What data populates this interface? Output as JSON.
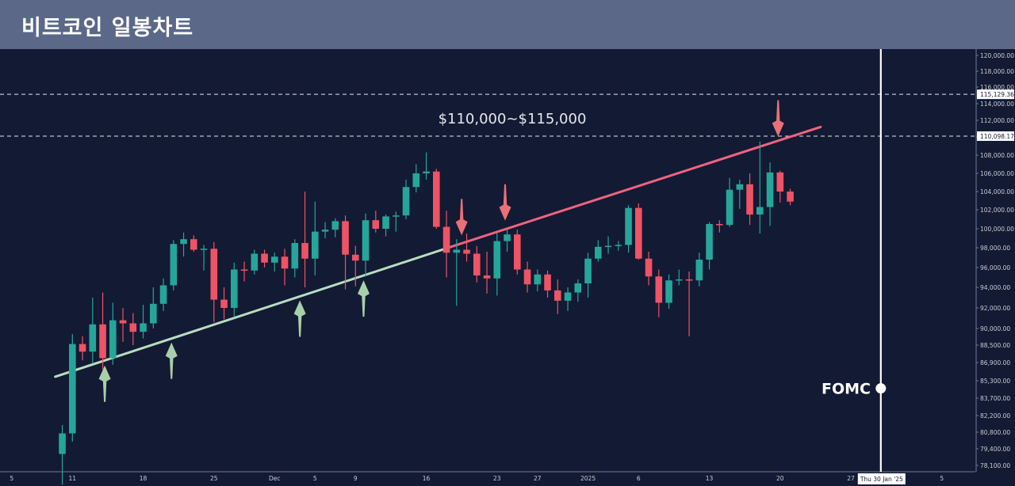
{
  "header": {
    "title": "비트코인 일봉차트"
  },
  "colors": {
    "background": "#131a33",
    "header_bg": "#5b6888",
    "up": "#26a69a",
    "down": "#ef5366",
    "support": "#b9dcbf",
    "resistance": "#f0637f",
    "up_arrow": "#a9cfa9",
    "down_arrow": "#ea7078",
    "guide": "#ffffff"
  },
  "chart_data": {
    "type": "candlestick",
    "title": "비트코인 일봉차트",
    "ylim": [
      77000,
      121000
    ],
    "y_ticks": [
      "120,000.00",
      "118,000.00",
      "116,000.00",
      "114,000.00",
      "112,000.00",
      "110,000.00",
      "108,000.00",
      "106,000.00",
      "104,000.00",
      "102,000.00",
      "100,000.00",
      "98,000.00",
      "96,000.00",
      "94,000.00",
      "92,000.00",
      "90,000.00",
      "88,500.00",
      "86,900.00",
      "85,300.00",
      "83,700.00",
      "82,200.00",
      "80,800.00",
      "79,400.00",
      "78,100.00"
    ],
    "y_tick_values": [
      120000,
      118000,
      116000,
      114000,
      112000,
      110000,
      108000,
      106000,
      104000,
      102000,
      100000,
      98000,
      96000,
      94000,
      92000,
      90000,
      88500,
      86900,
      85300,
      83700,
      82200,
      80800,
      79400,
      78100
    ],
    "highlighted_levels": [
      {
        "label": "115,129.36",
        "value": 115129.36
      },
      {
        "label": "110,098.17",
        "value": 110098.17
      }
    ],
    "x_ticks": [
      {
        "label": "5",
        "day": 0
      },
      {
        "label": "11",
        "day": 6
      },
      {
        "label": "18",
        "day": 13
      },
      {
        "label": "25",
        "day": 20
      },
      {
        "label": "Dec",
        "day": 26
      },
      {
        "label": "5",
        "day": 30
      },
      {
        "label": "9",
        "day": 34
      },
      {
        "label": "16",
        "day": 41
      },
      {
        "label": "23",
        "day": 48
      },
      {
        "label": "27",
        "day": 52
      },
      {
        "label": "2025",
        "day": 57
      },
      {
        "label": "6",
        "day": 62
      },
      {
        "label": "13",
        "day": 69
      },
      {
        "label": "20",
        "day": 76
      },
      {
        "label": "27",
        "day": 83
      },
      {
        "label": "5",
        "day": 92
      }
    ],
    "x_cursor_label": "Thu 30 Jan '25",
    "x_cursor_day": 86,
    "candles": [
      {
        "day": 5,
        "o": 79000,
        "h": 81400,
        "l": 76600,
        "c": 80700
      },
      {
        "day": 6,
        "o": 80700,
        "h": 89500,
        "l": 80000,
        "c": 88600
      },
      {
        "day": 7,
        "o": 88600,
        "h": 89300,
        "l": 87100,
        "c": 87900
      },
      {
        "day": 8,
        "o": 87900,
        "h": 93000,
        "l": 86800,
        "c": 90400
      },
      {
        "day": 9,
        "o": 90400,
        "h": 93500,
        "l": 86300,
        "c": 87300
      },
      {
        "day": 10,
        "o": 87300,
        "h": 92500,
        "l": 86700,
        "c": 90800
      },
      {
        "day": 11,
        "o": 90800,
        "h": 92000,
        "l": 88800,
        "c": 90500
      },
      {
        "day": 12,
        "o": 90500,
        "h": 91500,
        "l": 88500,
        "c": 89700
      },
      {
        "day": 13,
        "o": 89700,
        "h": 92300,
        "l": 89100,
        "c": 90500
      },
      {
        "day": 14,
        "o": 90500,
        "h": 94000,
        "l": 90000,
        "c": 92400
      },
      {
        "day": 15,
        "o": 92400,
        "h": 94900,
        "l": 91700,
        "c": 94200
      },
      {
        "day": 16,
        "o": 94200,
        "h": 98800,
        "l": 93700,
        "c": 98400
      },
      {
        "day": 17,
        "o": 98400,
        "h": 99600,
        "l": 97100,
        "c": 98900
      },
      {
        "day": 18,
        "o": 98900,
        "h": 99300,
        "l": 97600,
        "c": 97800
      },
      {
        "day": 19,
        "o": 97800,
        "h": 98300,
        "l": 95700,
        "c": 97900
      },
      {
        "day": 20,
        "o": 97900,
        "h": 98600,
        "l": 90600,
        "c": 92800
      },
      {
        "day": 21,
        "o": 92800,
        "h": 94000,
        "l": 90900,
        "c": 92000
      },
      {
        "day": 22,
        "o": 92000,
        "h": 96500,
        "l": 91100,
        "c": 95800
      },
      {
        "day": 23,
        "o": 95800,
        "h": 96600,
        "l": 94600,
        "c": 95700
      },
      {
        "day": 24,
        "o": 95700,
        "h": 97800,
        "l": 95300,
        "c": 97400
      },
      {
        "day": 25,
        "o": 97400,
        "h": 97800,
        "l": 96000,
        "c": 96500
      },
      {
        "day": 26,
        "o": 96500,
        "h": 97500,
        "l": 95600,
        "c": 97100
      },
      {
        "day": 27,
        "o": 97100,
        "h": 97900,
        "l": 94200,
        "c": 95900
      },
      {
        "day": 28,
        "o": 95900,
        "h": 98900,
        "l": 95000,
        "c": 98500
      },
      {
        "day": 29,
        "o": 98500,
        "h": 104000,
        "l": 94000,
        "c": 96900
      },
      {
        "day": 30,
        "o": 96900,
        "h": 102900,
        "l": 95200,
        "c": 99700
      },
      {
        "day": 31,
        "o": 99700,
        "h": 100700,
        "l": 99000,
        "c": 99900
      },
      {
        "day": 32,
        "o": 99900,
        "h": 101100,
        "l": 99100,
        "c": 100800
      },
      {
        "day": 33,
        "o": 100800,
        "h": 101400,
        "l": 93800,
        "c": 97300
      },
      {
        "day": 34,
        "o": 97300,
        "h": 98200,
        "l": 94100,
        "c": 96700
      },
      {
        "day": 35,
        "o": 96700,
        "h": 101600,
        "l": 95100,
        "c": 100900
      },
      {
        "day": 36,
        "o": 100900,
        "h": 101900,
        "l": 99600,
        "c": 100000
      },
      {
        "day": 37,
        "o": 100000,
        "h": 101500,
        "l": 99200,
        "c": 101300
      },
      {
        "day": 38,
        "o": 101300,
        "h": 101800,
        "l": 99700,
        "c": 101400
      },
      {
        "day": 39,
        "o": 101400,
        "h": 105300,
        "l": 101000,
        "c": 104500
      },
      {
        "day": 40,
        "o": 104500,
        "h": 107000,
        "l": 103900,
        "c": 106000
      },
      {
        "day": 41,
        "o": 106000,
        "h": 108300,
        "l": 105300,
        "c": 106200
      },
      {
        "day": 42,
        "o": 106200,
        "h": 106500,
        "l": 100000,
        "c": 100200
      },
      {
        "day": 43,
        "o": 100200,
        "h": 101900,
        "l": 95000,
        "c": 97500
      },
      {
        "day": 44,
        "o": 97500,
        "h": 98900,
        "l": 92200,
        "c": 97800
      },
      {
        "day": 45,
        "o": 97800,
        "h": 99500,
        "l": 96600,
        "c": 97400
      },
      {
        "day": 46,
        "o": 97400,
        "h": 98200,
        "l": 94500,
        "c": 95200
      },
      {
        "day": 47,
        "o": 95200,
        "h": 97600,
        "l": 93400,
        "c": 94900
      },
      {
        "day": 48,
        "o": 94900,
        "h": 99600,
        "l": 93200,
        "c": 98700
      },
      {
        "day": 49,
        "o": 98700,
        "h": 99900,
        "l": 97600,
        "c": 99400
      },
      {
        "day": 50,
        "o": 99400,
        "h": 99900,
        "l": 95300,
        "c": 95800
      },
      {
        "day": 51,
        "o": 95800,
        "h": 96600,
        "l": 93500,
        "c": 94300
      },
      {
        "day": 52,
        "o": 94300,
        "h": 95800,
        "l": 93600,
        "c": 95300
      },
      {
        "day": 53,
        "o": 95300,
        "h": 95700,
        "l": 93000,
        "c": 93700
      },
      {
        "day": 54,
        "o": 93700,
        "h": 94800,
        "l": 91400,
        "c": 92700
      },
      {
        "day": 55,
        "o": 92700,
        "h": 94000,
        "l": 91700,
        "c": 93500
      },
      {
        "day": 56,
        "o": 93500,
        "h": 94800,
        "l": 92600,
        "c": 94400
      },
      {
        "day": 57,
        "o": 94400,
        "h": 97500,
        "l": 93000,
        "c": 96900
      },
      {
        "day": 58,
        "o": 96900,
        "h": 98800,
        "l": 96600,
        "c": 98100
      },
      {
        "day": 59,
        "o": 98100,
        "h": 99200,
        "l": 97400,
        "c": 98200
      },
      {
        "day": 60,
        "o": 98200,
        "h": 98700,
        "l": 97700,
        "c": 98300
      },
      {
        "day": 61,
        "o": 98300,
        "h": 102500,
        "l": 97500,
        "c": 102200
      },
      {
        "day": 62,
        "o": 102200,
        "h": 102700,
        "l": 96800,
        "c": 96900
      },
      {
        "day": 63,
        "o": 96900,
        "h": 97600,
        "l": 94200,
        "c": 95100
      },
      {
        "day": 64,
        "o": 95100,
        "h": 95800,
        "l": 91100,
        "c": 92500
      },
      {
        "day": 65,
        "o": 92500,
        "h": 95300,
        "l": 91900,
        "c": 94700
      },
      {
        "day": 66,
        "o": 94700,
        "h": 95800,
        "l": 94200,
        "c": 94800
      },
      {
        "day": 67,
        "o": 94800,
        "h": 95600,
        "l": 89300,
        "c": 94700
      },
      {
        "day": 68,
        "o": 94700,
        "h": 97500,
        "l": 94100,
        "c": 96800
      },
      {
        "day": 69,
        "o": 96800,
        "h": 100700,
        "l": 95800,
        "c": 100500
      },
      {
        "day": 70,
        "o": 100500,
        "h": 100900,
        "l": 99600,
        "c": 100400
      },
      {
        "day": 71,
        "o": 100400,
        "h": 105500,
        "l": 100200,
        "c": 104200
      },
      {
        "day": 72,
        "o": 104200,
        "h": 105300,
        "l": 102100,
        "c": 104800
      },
      {
        "day": 73,
        "o": 104800,
        "h": 106000,
        "l": 100400,
        "c": 101500
      },
      {
        "day": 74,
        "o": 101500,
        "h": 109500,
        "l": 99500,
        "c": 102300
      },
      {
        "day": 75,
        "o": 102300,
        "h": 107200,
        "l": 100300,
        "c": 106100
      },
      {
        "day": 76,
        "o": 106100,
        "h": 106300,
        "l": 102800,
        "c": 104000
      },
      {
        "day": 77,
        "o": 104000,
        "h": 104300,
        "l": 102500,
        "c": 102900
      }
    ],
    "trendlines": [
      {
        "kind": "support",
        "from": {
          "day": 4.3,
          "value": 85650
        },
        "to": {
          "day": 43.3,
          "value": 98050
        }
      },
      {
        "kind": "resistance",
        "from": {
          "day": 43.3,
          "value": 98050
        },
        "to": {
          "day": 80,
          "value": 111200
        }
      }
    ],
    "arrows": {
      "up": [
        {
          "day": 9.2
        },
        {
          "day": 15.8
        },
        {
          "day": 28.5
        },
        {
          "day": 34.8
        }
      ],
      "down": [
        {
          "day": 44.5
        },
        {
          "day": 48.8
        },
        {
          "day": 75.8
        }
      ]
    },
    "annotation": "$110,000~$115,000",
    "event_label": "FOMC",
    "event_value": 84600
  }
}
